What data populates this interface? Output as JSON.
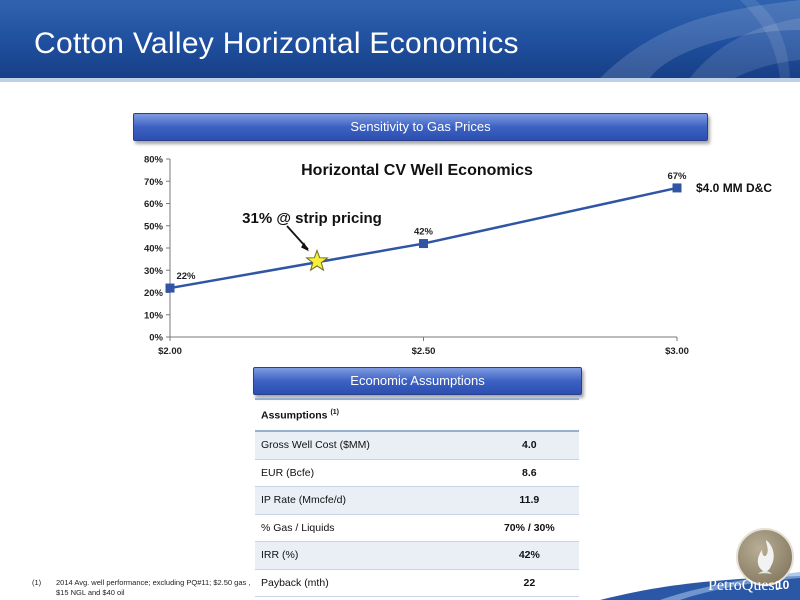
{
  "slide": {
    "title": "Cotton Valley Horizontal Economics",
    "page_number": "10"
  },
  "sections": {
    "sensitivity": "Sensitivity to Gas Prices",
    "assumptions": "Economic Assumptions"
  },
  "chart_data": {
    "type": "line",
    "title": "Horizontal CV Well Economics",
    "x_tick_labels": [
      "$2.00",
      "$2.50",
      "$3.00"
    ],
    "y_tick_labels": [
      "0%",
      "10%",
      "20%",
      "30%",
      "40%",
      "50%",
      "60%",
      "70%",
      "80%"
    ],
    "ylim": [
      0,
      80
    ],
    "xlim": [
      2.0,
      3.0
    ],
    "series": [
      {
        "name": "$4.0 MM D&C",
        "x": [
          2.0,
          2.5,
          3.0
        ],
        "y": [
          22,
          42,
          67
        ],
        "labels": [
          "22%",
          "42%",
          "67%"
        ]
      }
    ],
    "annotation": {
      "text": "31% @ strip pricing",
      "x": 2.29,
      "y": 34
    },
    "legend_position": "right"
  },
  "assumptions_table": {
    "header": "Assumptions",
    "header_sup": "(1)",
    "rows": [
      {
        "label": "Gross Well Cost ($MM)",
        "value": "4.0"
      },
      {
        "label": "EUR (Bcfe)",
        "value": "8.6"
      },
      {
        "label": "IP Rate (Mmcfe/d)",
        "value": "11.9"
      },
      {
        "label": "% Gas / Liquids",
        "value": "70% / 30%"
      },
      {
        "label": "IRR (%)",
        "value": "42%"
      },
      {
        "label": "Payback (mth)",
        "value": "22"
      }
    ]
  },
  "footnote": {
    "number": "(1)",
    "text": "2014 Avg. well performance; excluding PQ#11; $2.50 gas , $15 NGL and $40 oil"
  },
  "brand": {
    "name": "PetroQuest"
  },
  "colors": {
    "header_blue": "#1f4f9e",
    "series": "#2f55a4",
    "star": "#f7ef3a"
  }
}
